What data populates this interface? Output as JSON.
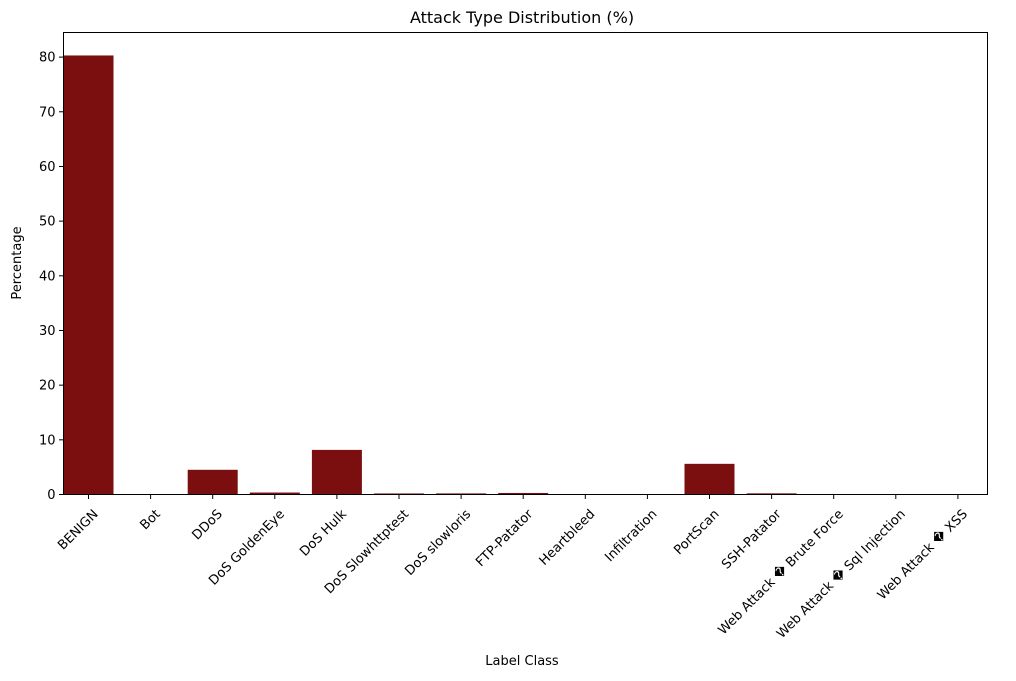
{
  "chart_data": {
    "type": "bar",
    "title": "Attack Type Distribution (%)",
    "xlabel": "Label Class",
    "ylabel": "Percentage",
    "ylim": [
      0,
      84.5
    ],
    "yticks": [
      0,
      10,
      20,
      30,
      40,
      50,
      60,
      70,
      80
    ],
    "grid": false,
    "bar_color": "#7b0f0f",
    "categories": [
      "BENIGN",
      "Bot",
      "DDoS",
      "DoS GoldenEye",
      "DoS Hulk",
      "DoS Slowhttptest",
      "DoS slowloris",
      "FTP-Patator",
      "Heartbleed",
      "Infiltration",
      "PortScan",
      "SSH-Patator",
      "Web Attack � Brute Force",
      "Web Attack � Sql Injection",
      "Web Attack � XSS"
    ],
    "values": [
      80.3,
      0.07,
      4.52,
      0.36,
      8.16,
      0.19,
      0.2,
      0.28,
      0.0004,
      0.0013,
      5.61,
      0.21,
      0.05,
      0.0007,
      0.02
    ]
  }
}
